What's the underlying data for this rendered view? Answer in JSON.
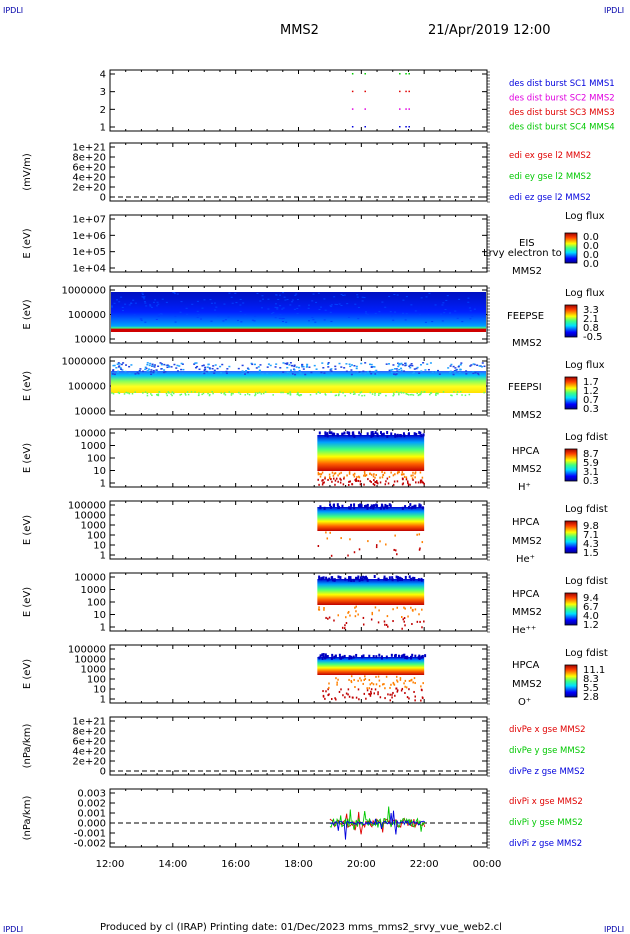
{
  "corner_labels": {
    "top_left": "IPDLI",
    "top_right": "IPDLI",
    "bottom_left": "IPDLI",
    "bottom_right": "IPDLI"
  },
  "header": {
    "spacecraft": "MMS2",
    "datetime": "21/Apr/2019 12:00"
  },
  "footer": "Produced by cl (IRAP)    Printing date: 01/Dec/2023    mms_mms2_srvy_vue_web2.cl",
  "time_axis": {
    "ticks": [
      "12:00",
      "14:00",
      "16:00",
      "18:00",
      "20:00",
      "22:00",
      "00:00"
    ]
  },
  "colors": {
    "red": "#e00000",
    "green": "#00c800",
    "blue": "#0000dd",
    "magenta": "#e000e0"
  },
  "chart_data": [
    {
      "type": "scatter",
      "panel": "burst",
      "yticks": [
        "4",
        "3",
        "2",
        "1"
      ],
      "legend": [
        {
          "text": "des dist burst SC1 MMS1",
          "color": "#0000dd"
        },
        {
          "text": "des dist burst SC2 MMS2",
          "color": "#e000e0"
        },
        {
          "text": "des dist burst SC3 MMS3",
          "color": "#e00000"
        },
        {
          "text": "des dist burst SC4 MMS4",
          "color": "#00c800"
        }
      ],
      "series": [
        {
          "name": "des dist burst SC1 MMS1",
          "y": 1,
          "x_hours": [
            19.7,
            20.1,
            21.2,
            21.4,
            21.5
          ]
        },
        {
          "name": "des dist burst SC2 MMS2",
          "y": 2,
          "x_hours": [
            19.7,
            20.1,
            21.2,
            21.4,
            21.5
          ]
        },
        {
          "name": "des dist burst SC3 MMS3",
          "y": 3,
          "x_hours": [
            19.7,
            20.1,
            21.2,
            21.4,
            21.5
          ]
        },
        {
          "name": "des dist burst SC4 MMS4",
          "y": 4,
          "x_hours": [
            19.7,
            20.1,
            21.2,
            21.4,
            21.5
          ]
        }
      ]
    },
    {
      "type": "line",
      "panel": "edi",
      "ylabel": "(mV/m)",
      "yticks": [
        "1e+21",
        "8e+20",
        "6e+20",
        "4e+20",
        "2e+20",
        "0"
      ],
      "legend": [
        {
          "text": "edi ex gse l2 MMS2",
          "color": "#e00000"
        },
        {
          "text": "edi ey gse l2 MMS2",
          "color": "#00c800"
        },
        {
          "text": "edi ez gse l2 MMS2",
          "color": "#0000dd"
        }
      ]
    },
    {
      "type": "heatmap",
      "panel": "eis",
      "ylabel": "E (eV)",
      "yticks": [
        "1e+07",
        "1e+06",
        "1e+05",
        "1e+04"
      ],
      "labels": [
        "EIS",
        "MMS2"
      ],
      "overlay_text": "Lrvy electron to",
      "colorbar": {
        "title": "Log flux",
        "ticks": [
          "0.0",
          "0.0",
          "0.0",
          "0.0"
        ]
      }
    },
    {
      "type": "heatmap",
      "panel": "feeps_e",
      "ylabel": "E (eV)",
      "yticks": [
        "1000000",
        "100000",
        "10000"
      ],
      "labels": [
        "FEEPSE",
        "MMS2"
      ],
      "colorbar": {
        "title": "Log flux",
        "ticks": [
          "3.3",
          "2.1",
          "0.8",
          "-0.5"
        ]
      }
    },
    {
      "type": "heatmap",
      "panel": "feeps_i",
      "ylabel": "E (eV)",
      "yticks": [
        "1000000",
        "100000",
        "10000"
      ],
      "labels": [
        "FEEPSI",
        "MMS2"
      ],
      "colorbar": {
        "title": "Log flux",
        "ticks": [
          "1.7",
          "1.2",
          "0.7",
          "0.3"
        ]
      }
    },
    {
      "type": "heatmap",
      "panel": "hpca_h",
      "ylabel": "E (eV)",
      "yticks": [
        "10000",
        "1000",
        "100",
        "10",
        "1"
      ],
      "labels": [
        "HPCA",
        "MMS2",
        "H⁺"
      ],
      "colorbar": {
        "title": "Log fdist",
        "ticks": [
          "8.7",
          "5.9",
          "3.1",
          "0.3"
        ]
      }
    },
    {
      "type": "heatmap",
      "panel": "hpca_he",
      "ylabel": "E (eV)",
      "yticks": [
        "100000",
        "10000",
        "1000",
        "100",
        "10",
        "1"
      ],
      "labels": [
        "HPCA",
        "MMS2",
        "He⁺"
      ],
      "colorbar": {
        "title": "Log fdist",
        "ticks": [
          "9.8",
          "7.1",
          "4.3",
          "1.5"
        ]
      }
    },
    {
      "type": "heatmap",
      "panel": "hpca_hepp",
      "ylabel": "E (eV)",
      "yticks": [
        "10000",
        "1000",
        "100",
        "10",
        "1"
      ],
      "labels": [
        "HPCA",
        "MMS2",
        "He⁺⁺"
      ],
      "colorbar": {
        "title": "Log fdist",
        "ticks": [
          "9.4",
          "6.7",
          "4.0",
          "1.2"
        ]
      }
    },
    {
      "type": "heatmap",
      "panel": "hpca_o",
      "ylabel": "E (eV)",
      "yticks": [
        "100000",
        "10000",
        "1000",
        "100",
        "10",
        "1"
      ],
      "labels": [
        "HPCA",
        "MMS2",
        "O⁺"
      ],
      "colorbar": {
        "title": "Log fdist",
        "ticks": [
          "11.1",
          "8.3",
          "5.5",
          "2.8"
        ]
      }
    },
    {
      "type": "line",
      "panel": "divpe",
      "ylabel": "(nPa/km)",
      "yticks": [
        "1e+21",
        "8e+20",
        "6e+20",
        "4e+20",
        "2e+20",
        "0"
      ],
      "legend": [
        {
          "text": "divPe x gse MMS2",
          "color": "#e00000"
        },
        {
          "text": "divPe y gse MMS2",
          "color": "#00c800"
        },
        {
          "text": "divPe z gse MMS2",
          "color": "#0000dd"
        }
      ]
    },
    {
      "type": "line",
      "panel": "divpi",
      "ylabel": "(nPa/km)",
      "yticks": [
        "0.003",
        "0.002",
        "0.001",
        "0.000",
        "-0.001",
        "-0.002"
      ],
      "ylim": [
        -0.0025,
        0.003
      ],
      "legend": [
        {
          "text": "divPi x gse MMS2",
          "color": "#e00000"
        },
        {
          "text": "divPi y gse MMS2",
          "color": "#00c800"
        },
        {
          "text": "divPi z gse MMS2",
          "color": "#0000dd"
        }
      ]
    }
  ]
}
